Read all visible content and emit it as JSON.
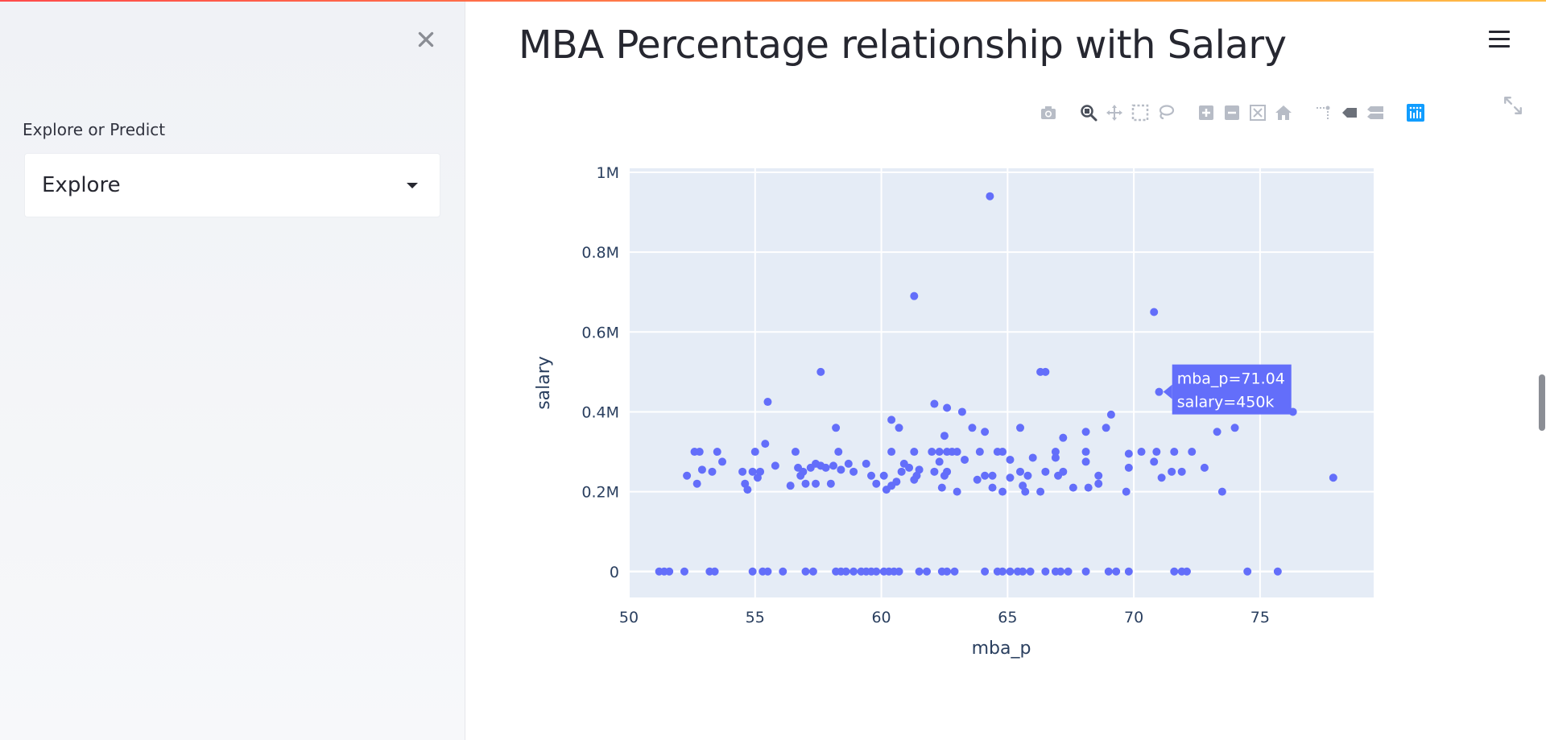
{
  "sidebar": {
    "close_icon": "close-icon",
    "select_label": "Explore or Predict",
    "select_value": "Explore"
  },
  "main": {
    "title": "MBA Percentage relationship with Salary",
    "menu_icon": "hamburger-menu-icon"
  },
  "modebar": {
    "buttons": [
      "camera-icon",
      "zoom-icon",
      "pan-icon",
      "box-select-icon",
      "lasso-select-icon",
      "zoom-in-icon",
      "zoom-out-icon",
      "autoscale-icon",
      "reset-axes-icon",
      "spike-lines-icon",
      "hover-closest-icon",
      "hover-compare-icon",
      "plotly-logo-icon"
    ],
    "expand_icon": "fullscreen-icon"
  },
  "colors": {
    "marker": "#636efa",
    "plot_bg": "#e5ecf6",
    "grid": "#ffffff",
    "tooltip_bg": "#636efa"
  },
  "chart_data": {
    "type": "scatter",
    "xlabel": "mba_p",
    "ylabel": "salary",
    "xlim": [
      50,
      79.5
    ],
    "ylim": [
      -65000,
      1010000
    ],
    "x_ticks": [
      50,
      55,
      60,
      65,
      70,
      75
    ],
    "x_tick_labels": [
      "50",
      "55",
      "60",
      "65",
      "70",
      "75"
    ],
    "y_ticks": [
      0,
      200000,
      400000,
      600000,
      800000,
      1000000
    ],
    "y_tick_labels": [
      "0",
      "0.2M",
      "0.4M",
      "0.6M",
      "0.8M",
      "1M"
    ],
    "grid": true,
    "legend": "none",
    "hover": {
      "x": 71.04,
      "y": 450000,
      "line1": "mba_p=71.04",
      "line2": "salary=450k"
    },
    "points": [
      [
        64.3,
        940000
      ],
      [
        61.3,
        690000
      ],
      [
        70.8,
        650000
      ],
      [
        57.6,
        500000
      ],
      [
        66.3,
        500000
      ],
      [
        66.5,
        500000
      ],
      [
        71.0,
        450000
      ],
      [
        55.5,
        425000
      ],
      [
        62.1,
        420000
      ],
      [
        62.6,
        410000
      ],
      [
        63.2,
        400000
      ],
      [
        69.1,
        393000
      ],
      [
        76.3,
        400000
      ],
      [
        60.4,
        380000
      ],
      [
        60.7,
        360000
      ],
      [
        58.2,
        360000
      ],
      [
        63.6,
        360000
      ],
      [
        64.1,
        350000
      ],
      [
        65.5,
        360000
      ],
      [
        68.1,
        350000
      ],
      [
        68.9,
        360000
      ],
      [
        73.3,
        350000
      ],
      [
        74.0,
        360000
      ],
      [
        62.5,
        340000
      ],
      [
        67.2,
        335000
      ],
      [
        55.4,
        320000
      ],
      [
        52.6,
        300000
      ],
      [
        52.8,
        300000
      ],
      [
        53.5,
        300000
      ],
      [
        55.0,
        300000
      ],
      [
        56.6,
        300000
      ],
      [
        58.3,
        300000
      ],
      [
        60.4,
        300000
      ],
      [
        61.3,
        300000
      ],
      [
        62.0,
        300000
      ],
      [
        62.3,
        300000
      ],
      [
        62.6,
        300000
      ],
      [
        62.8,
        300000
      ],
      [
        63.0,
        300000
      ],
      [
        63.9,
        300000
      ],
      [
        64.8,
        300000
      ],
      [
        66.9,
        300000
      ],
      [
        68.1,
        300000
      ],
      [
        69.8,
        295000
      ],
      [
        70.3,
        300000
      ],
      [
        70.9,
        300000
      ],
      [
        71.6,
        300000
      ],
      [
        72.3,
        300000
      ],
      [
        55.8,
        265000
      ],
      [
        56.7,
        260000
      ],
      [
        57.2,
        260000
      ],
      [
        57.6,
        265000
      ],
      [
        58.1,
        265000
      ],
      [
        58.7,
        270000
      ],
      [
        59.4,
        270000
      ],
      [
        60.9,
        270000
      ],
      [
        61.1,
        260000
      ],
      [
        61.5,
        255000
      ],
      [
        62.3,
        275000
      ],
      [
        62.6,
        250000
      ],
      [
        63.3,
        280000
      ],
      [
        64.6,
        300000
      ],
      [
        65.1,
        280000
      ],
      [
        66.0,
        285000
      ],
      [
        66.9,
        285000
      ],
      [
        68.1,
        275000
      ],
      [
        69.8,
        260000
      ],
      [
        70.8,
        275000
      ],
      [
        72.8,
        260000
      ],
      [
        53.7,
        275000
      ],
      [
        52.9,
        255000
      ],
      [
        52.3,
        240000
      ],
      [
        53.3,
        250000
      ],
      [
        54.9,
        250000
      ],
      [
        55.2,
        250000
      ],
      [
        54.5,
        250000
      ],
      [
        56.8,
        240000
      ],
      [
        56.9,
        250000
      ],
      [
        57.4,
        270000
      ],
      [
        57.8,
        260000
      ],
      [
        58.4,
        255000
      ],
      [
        58.9,
        250000
      ],
      [
        59.6,
        240000
      ],
      [
        60.1,
        240000
      ],
      [
        60.8,
        250000
      ],
      [
        61.4,
        240000
      ],
      [
        62.1,
        250000
      ],
      [
        62.5,
        240000
      ],
      [
        64.1,
        240000
      ],
      [
        64.4,
        240000
      ],
      [
        65.1,
        235000
      ],
      [
        65.5,
        250000
      ],
      [
        65.8,
        240000
      ],
      [
        66.5,
        250000
      ],
      [
        67.0,
        240000
      ],
      [
        67.2,
        250000
      ],
      [
        68.6,
        240000
      ],
      [
        71.1,
        235000
      ],
      [
        71.5,
        250000
      ],
      [
        71.9,
        250000
      ],
      [
        77.9,
        235000
      ],
      [
        54.6,
        220000
      ],
      [
        52.7,
        220000
      ],
      [
        54.7,
        205000
      ],
      [
        55.1,
        235000
      ],
      [
        56.4,
        215000
      ],
      [
        57.0,
        220000
      ],
      [
        57.4,
        220000
      ],
      [
        58.0,
        220000
      ],
      [
        59.8,
        220000
      ],
      [
        60.2,
        205000
      ],
      [
        60.4,
        215000
      ],
      [
        60.6,
        225000
      ],
      [
        61.3,
        230000
      ],
      [
        62.4,
        210000
      ],
      [
        63.0,
        200000
      ],
      [
        63.8,
        230000
      ],
      [
        64.4,
        210000
      ],
      [
        64.8,
        200000
      ],
      [
        65.6,
        215000
      ],
      [
        65.7,
        200000
      ],
      [
        66.3,
        200000
      ],
      [
        67.6,
        210000
      ],
      [
        68.2,
        210000
      ],
      [
        68.6,
        220000
      ],
      [
        69.7,
        200000
      ],
      [
        73.5,
        200000
      ],
      [
        51.2,
        0
      ],
      [
        51.4,
        0
      ],
      [
        51.6,
        0
      ],
      [
        52.2,
        0
      ],
      [
        53.2,
        0
      ],
      [
        53.4,
        0
      ],
      [
        54.9,
        0
      ],
      [
        55.3,
        0
      ],
      [
        55.5,
        0
      ],
      [
        56.1,
        0
      ],
      [
        57.0,
        0
      ],
      [
        57.3,
        0
      ],
      [
        58.2,
        0
      ],
      [
        58.4,
        0
      ],
      [
        58.6,
        0
      ],
      [
        58.9,
        0
      ],
      [
        59.2,
        0
      ],
      [
        59.4,
        0
      ],
      [
        59.6,
        0
      ],
      [
        59.8,
        0
      ],
      [
        60.1,
        0
      ],
      [
        60.3,
        0
      ],
      [
        60.5,
        0
      ],
      [
        60.7,
        0
      ],
      [
        61.5,
        0
      ],
      [
        61.8,
        0
      ],
      [
        62.4,
        0
      ],
      [
        62.6,
        0
      ],
      [
        62.9,
        0
      ],
      [
        64.1,
        0
      ],
      [
        64.6,
        0
      ],
      [
        64.8,
        0
      ],
      [
        65.1,
        0
      ],
      [
        65.4,
        0
      ],
      [
        65.6,
        0
      ],
      [
        65.9,
        0
      ],
      [
        66.5,
        0
      ],
      [
        66.9,
        0
      ],
      [
        67.1,
        0
      ],
      [
        67.4,
        0
      ],
      [
        68.1,
        0
      ],
      [
        69.0,
        0
      ],
      [
        69.3,
        0
      ],
      [
        69.8,
        0
      ],
      [
        71.6,
        0
      ],
      [
        71.9,
        0
      ],
      [
        72.1,
        0
      ],
      [
        74.5,
        0
      ],
      [
        75.7,
        0
      ]
    ]
  }
}
